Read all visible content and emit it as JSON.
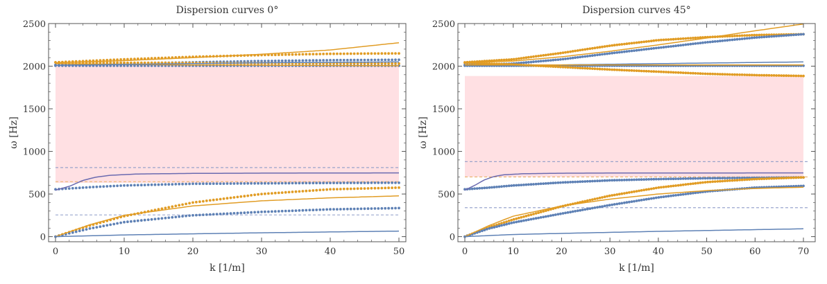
{
  "colors": {
    "blue": "#5E81B5",
    "orange": "#E19C24",
    "purple": "#6A6AB0",
    "band": "#FFE0E3",
    "dash_blue": "#8E9BC8",
    "dash_orange": "#E8B066"
  },
  "chart_data": [
    {
      "type": "line",
      "title": "Dispersion curves 0°",
      "xlabel": "k [1/m]",
      "ylabel": "ω  [Hz]",
      "xlim": [
        0,
        50
      ],
      "ylim": [
        -60,
        2500
      ],
      "xticks": [
        0,
        10,
        20,
        30,
        40,
        50
      ],
      "yticks": [
        0,
        500,
        1000,
        1500,
        2000,
        2500
      ],
      "bands": [
        {
          "y0": 630,
          "y1": 2010,
          "x0": 0,
          "x1": 50
        }
      ],
      "hlines": [
        {
          "y": 810,
          "color": "blue"
        },
        {
          "y": 645,
          "color": "orange"
        },
        {
          "y": 255,
          "color": "blue"
        }
      ],
      "series": [
        {
          "name": "blue-dotted-upper",
          "style": "dots",
          "color": "blue",
          "x": [
            0,
            10,
            20,
            30,
            40,
            50
          ],
          "values": [
            2015,
            2030,
            2045,
            2060,
            2070,
            2075
          ]
        },
        {
          "name": "blue-dotted-flat",
          "style": "dots",
          "color": "blue",
          "x": [
            0,
            10,
            20,
            30,
            40,
            50
          ],
          "values": [
            2005,
            2005,
            2005,
            2005,
            2005,
            2005
          ]
        },
        {
          "name": "orange-dotted-top",
          "style": "dots",
          "color": "orange",
          "x": [
            0,
            10,
            20,
            30,
            40,
            50
          ],
          "values": [
            2045,
            2080,
            2110,
            2130,
            2145,
            2150
          ]
        },
        {
          "name": "orange-dotted-mid",
          "style": "dots",
          "color": "orange",
          "x": [
            0,
            10,
            20,
            30,
            40,
            50
          ],
          "values": [
            2045,
            2040,
            2038,
            2035,
            2033,
            2030
          ]
        },
        {
          "name": "blue-dotted-flex",
          "style": "dots",
          "color": "blue",
          "x": [
            0,
            5,
            10,
            20,
            30,
            40,
            50
          ],
          "values": [
            555,
            580,
            600,
            620,
            625,
            630,
            632
          ]
        },
        {
          "name": "orange-dotted-flex",
          "style": "dots",
          "color": "orange",
          "x": [
            0,
            5,
            10,
            20,
            30,
            40,
            50
          ],
          "values": [
            0,
            130,
            240,
            400,
            500,
            555,
            575
          ]
        },
        {
          "name": "blue-dotted-low",
          "style": "dots",
          "color": "blue",
          "x": [
            0,
            5,
            10,
            20,
            30,
            40,
            50
          ],
          "values": [
            0,
            95,
            170,
            250,
            290,
            320,
            335
          ]
        },
        {
          "name": "orange-solid-top",
          "style": "line",
          "color": "orange",
          "x": [
            0,
            10,
            20,
            30,
            40,
            50
          ],
          "values": [
            2040,
            2065,
            2100,
            2140,
            2190,
            2275
          ]
        },
        {
          "name": "orange-solid-mid",
          "style": "line",
          "color": "orange",
          "x": [
            0,
            10,
            20,
            30,
            40,
            50
          ],
          "values": [
            2030,
            2020,
            2015,
            2012,
            2008,
            2005
          ]
        },
        {
          "name": "blue-solid-top",
          "style": "line",
          "color": "blue",
          "x": [
            0,
            10,
            20,
            30,
            40,
            50
          ],
          "values": [
            2010,
            2020,
            2030,
            2040,
            2045,
            2050
          ]
        },
        {
          "name": "purple-solid",
          "style": "line",
          "color": "purple",
          "x": [
            0,
            2,
            4,
            6,
            8,
            12,
            20,
            30,
            50
          ],
          "values": [
            545,
            590,
            660,
            700,
            720,
            735,
            742,
            745,
            748
          ]
        },
        {
          "name": "orange-solid-flex",
          "style": "line",
          "color": "orange",
          "x": [
            0,
            5,
            10,
            20,
            30,
            40,
            50
          ],
          "values": [
            0,
            140,
            250,
            360,
            420,
            455,
            478
          ]
        },
        {
          "name": "blue-solid-low",
          "style": "line",
          "color": "blue",
          "x": [
            0,
            10,
            20,
            30,
            40,
            50
          ],
          "values": [
            0,
            20,
            33,
            45,
            55,
            65
          ]
        }
      ]
    },
    {
      "type": "line",
      "title": "Dispersion curves 45°",
      "xlabel": "k [1/m]",
      "ylabel": "ω  [Hz]",
      "xlim": [
        0,
        71
      ],
      "ylim": [
        -60,
        2500
      ],
      "xticks": [
        0,
        10,
        20,
        30,
        40,
        50,
        60,
        70
      ],
      "yticks": [
        0,
        500,
        1000,
        1500,
        2000,
        2500
      ],
      "bands": [
        {
          "y0": 700,
          "y1": 1885,
          "x0": 0,
          "x1": 70
        }
      ],
      "hlines": [
        {
          "y": 880,
          "color": "blue"
        },
        {
          "y": 700,
          "color": "orange"
        },
        {
          "y": 340,
          "color": "blue"
        }
      ],
      "series": [
        {
          "name": "orange-dotted-upper",
          "style": "dots",
          "color": "orange",
          "x": [
            0,
            10,
            20,
            30,
            40,
            50,
            60,
            70
          ],
          "values": [
            2045,
            2080,
            2155,
            2240,
            2305,
            2340,
            2365,
            2375
          ]
        },
        {
          "name": "blue-dotted-upper",
          "style": "dots",
          "color": "blue",
          "x": [
            0,
            10,
            20,
            30,
            40,
            50,
            60,
            70
          ],
          "values": [
            2015,
            2030,
            2080,
            2150,
            2215,
            2280,
            2335,
            2375
          ]
        },
        {
          "name": "blue-dotted-flat",
          "style": "dots",
          "color": "blue",
          "x": [
            0,
            20,
            40,
            70
          ],
          "values": [
            2005,
            2005,
            2005,
            2005
          ]
        },
        {
          "name": "orange-dotted-down",
          "style": "dots",
          "color": "orange",
          "x": [
            0,
            10,
            20,
            30,
            40,
            50,
            60,
            70
          ],
          "values": [
            2040,
            2020,
            1990,
            1960,
            1935,
            1910,
            1895,
            1885
          ]
        },
        {
          "name": "blue-dotted-flex",
          "style": "dots",
          "color": "blue",
          "x": [
            0,
            5,
            10,
            20,
            30,
            40,
            50,
            60,
            70
          ],
          "values": [
            555,
            575,
            600,
            635,
            660,
            675,
            685,
            690,
            695
          ]
        },
        {
          "name": "orange-dotted-flex",
          "style": "dots",
          "color": "orange",
          "x": [
            0,
            5,
            10,
            20,
            30,
            40,
            50,
            60,
            70
          ],
          "values": [
            0,
            110,
            200,
            355,
            480,
            575,
            640,
            675,
            695
          ]
        },
        {
          "name": "blue-dotted-low",
          "style": "dots",
          "color": "blue",
          "x": [
            0,
            5,
            10,
            20,
            30,
            40,
            50,
            60,
            70
          ],
          "values": [
            0,
            95,
            165,
            270,
            370,
            460,
            530,
            575,
            595
          ]
        },
        {
          "name": "orange-solid-upper",
          "style": "line",
          "color": "orange",
          "x": [
            0,
            10,
            20,
            30,
            40,
            50,
            60,
            70
          ],
          "values": [
            2040,
            2060,
            2110,
            2175,
            2250,
            2330,
            2415,
            2495
          ]
        },
        {
          "name": "blue-solid-upper",
          "style": "line",
          "color": "blue",
          "x": [
            0,
            20,
            40,
            70
          ],
          "values": [
            2010,
            2015,
            2030,
            2050
          ]
        },
        {
          "name": "orange-solid-flat",
          "style": "line",
          "color": "orange",
          "x": [
            0,
            20,
            40,
            70
          ],
          "values": [
            2015,
            2015,
            2015,
            2015
          ]
        },
        {
          "name": "purple-solid",
          "style": "line",
          "color": "purple",
          "x": [
            0,
            2,
            4,
            6,
            8,
            12,
            20,
            30,
            70
          ],
          "values": [
            545,
            600,
            665,
            705,
            725,
            738,
            744,
            746,
            748
          ]
        },
        {
          "name": "orange-solid-flex",
          "style": "line",
          "color": "orange",
          "x": [
            0,
            5,
            10,
            20,
            30,
            40,
            50,
            60,
            70
          ],
          "values": [
            0,
            130,
            240,
            360,
            440,
            500,
            540,
            565,
            580
          ]
        },
        {
          "name": "blue-solid-low",
          "style": "line",
          "color": "blue",
          "x": [
            0,
            10,
            20,
            30,
            40,
            50,
            60,
            70
          ],
          "values": [
            0,
            25,
            38,
            50,
            62,
            72,
            82,
            92
          ]
        }
      ]
    }
  ]
}
